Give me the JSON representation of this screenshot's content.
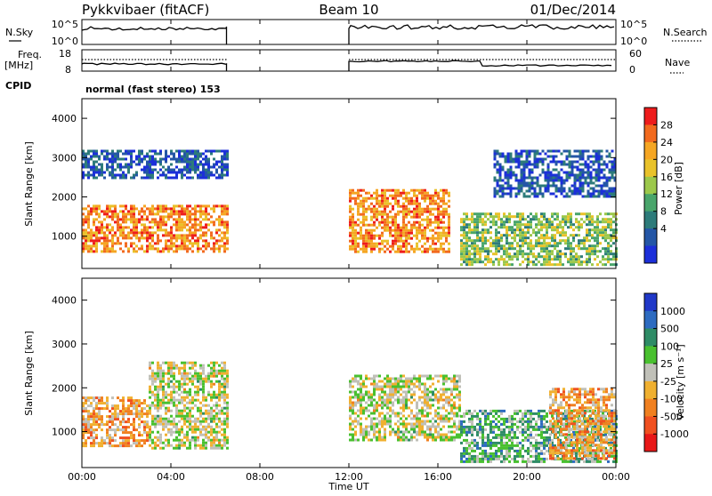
{
  "header": {
    "radar": "Pykkvibaer (fitACF)",
    "beam": "Beam 10",
    "date": "01/Dec/2014",
    "cpid_label": "CPID",
    "cpid_value": "normal (fast stereo) 153"
  },
  "strip_labels": {
    "nsky": "N.Sky",
    "nsky_ticks": [
      "10^5",
      "10^0"
    ],
    "nsearch": "N.Search",
    "freq": "Freq.",
    "freq_unit": "[MHz]",
    "freq_ticks": [
      "18",
      "8"
    ],
    "nave": "Nave",
    "nave_ticks": [
      "60",
      "0"
    ]
  },
  "axes": {
    "xlabel": "Time UT",
    "xticks": [
      "00:00",
      "04:00",
      "08:00",
      "12:00",
      "16:00",
      "20:00",
      "00:00"
    ],
    "ylabel": "Slant Range [km]",
    "yticks": [
      "4000",
      "3000",
      "2000",
      "1000"
    ]
  },
  "power_colorbar": {
    "label": "Power [dB]",
    "ticks": [
      "28",
      "24",
      "20",
      "16",
      "12",
      "8",
      "4"
    ],
    "colors": [
      "#ee1c1c",
      "#f26a1e",
      "#f5a623",
      "#e9c22a",
      "#9cc84b",
      "#49a56b",
      "#2d7b7a",
      "#2456a6",
      "#1c2fd9"
    ]
  },
  "velocity_colorbar": {
    "label": "Velocity [m s⁻¹]",
    "ticks": [
      "1000",
      "500",
      "100",
      "25",
      "-25",
      "-100",
      "-500",
      "-1000"
    ],
    "colors": [
      "#2038c8",
      "#2d6bc0",
      "#2e8c66",
      "#49c02f",
      "#c0c0b8",
      "#f0b030",
      "#f08020",
      "#f05020",
      "#e81818"
    ]
  },
  "chart_data": {
    "type": "heatmap",
    "x_range_hours": [
      0,
      24
    ],
    "y_range_km": [
      180,
      4500
    ],
    "data_gap_hours": [
      6.5,
      12.0
    ],
    "panels": [
      {
        "name": "Power",
        "units": "dB",
        "regions": [
          {
            "t": [
              0.0,
              6.5
            ],
            "r": [
              600,
              1800
            ],
            "value": 24
          },
          {
            "t": [
              0.0,
              6.5
            ],
            "r": [
              2500,
              3200
            ],
            "value": 8
          },
          {
            "t": [
              12.0,
              16.5
            ],
            "r": [
              600,
              2200
            ],
            "value": 24
          },
          {
            "t": [
              17.0,
              24.0
            ],
            "r": [
              300,
              1600
            ],
            "value": 16
          },
          {
            "t": [
              18.5,
              24.0
            ],
            "r": [
              2000,
              3200
            ],
            "value": 8
          }
        ]
      },
      {
        "name": "Velocity",
        "units": "m/s",
        "regions": [
          {
            "t": [
              0.0,
              3.0
            ],
            "r": [
              700,
              1800
            ],
            "value": -300
          },
          {
            "t": [
              3.0,
              6.5
            ],
            "r": [
              600,
              2600
            ],
            "value": 0
          },
          {
            "t": [
              12.0,
              17.0
            ],
            "r": [
              800,
              2300
            ],
            "value": 0
          },
          {
            "t": [
              17.0,
              24.0
            ],
            "r": [
              300,
              1500
            ],
            "value": 300
          },
          {
            "t": [
              21.0,
              24.0
            ],
            "r": [
              400,
              2000
            ],
            "value": -300
          }
        ]
      }
    ]
  }
}
